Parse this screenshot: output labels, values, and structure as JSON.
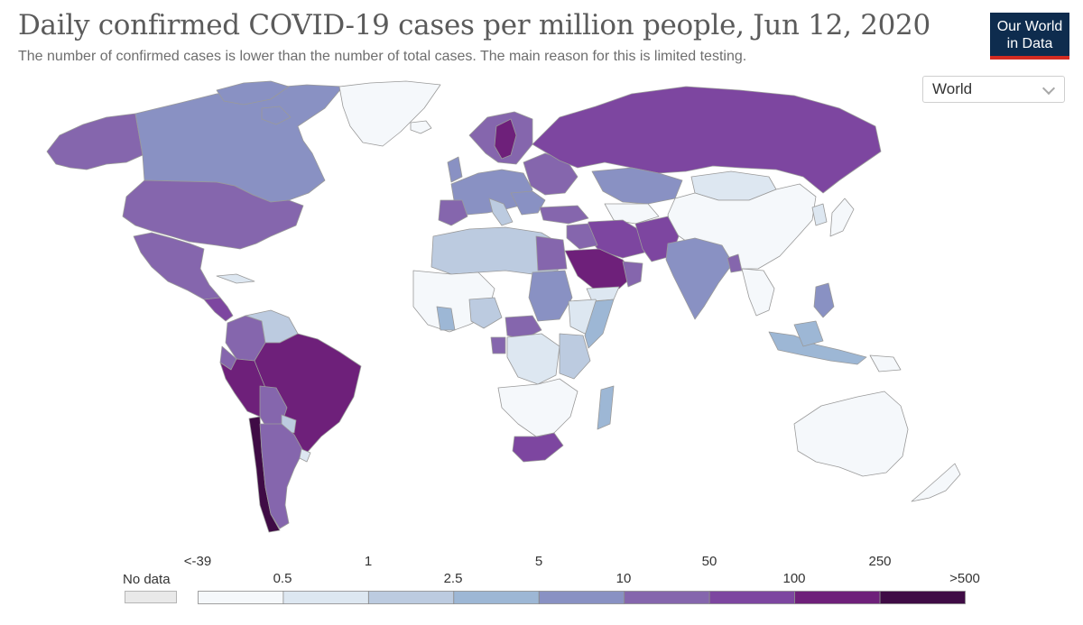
{
  "header": {
    "title": "Daily confirmed COVID-19 cases per million people, Jun 12, 2020",
    "subtitle": "The number of confirmed cases is lower than the number of total cases. The main reason for this is limited testing.",
    "logo_line1": "Our World",
    "logo_line2": "in Data"
  },
  "region_select": {
    "value": "World",
    "icon": "chevron-down-icon"
  },
  "legend": {
    "nodata_label": "No data",
    "nodata_color": "#e9e9e9",
    "colors": [
      "#f5f8fb",
      "#dde7f1",
      "#bccbe0",
      "#9db7d5",
      "#8991c3",
      "#8566ad",
      "#7d46a0",
      "#6e207a",
      "#3f0b45"
    ],
    "top_labels": [
      "<-39",
      "1",
      "5",
      "50",
      "250"
    ],
    "bottom_labels": [
      "0.5",
      "2.5",
      "10",
      "100",
      ">500"
    ]
  },
  "palette": {
    "ocean": "#ffffff",
    "border": "#9a9a9a"
  }
}
